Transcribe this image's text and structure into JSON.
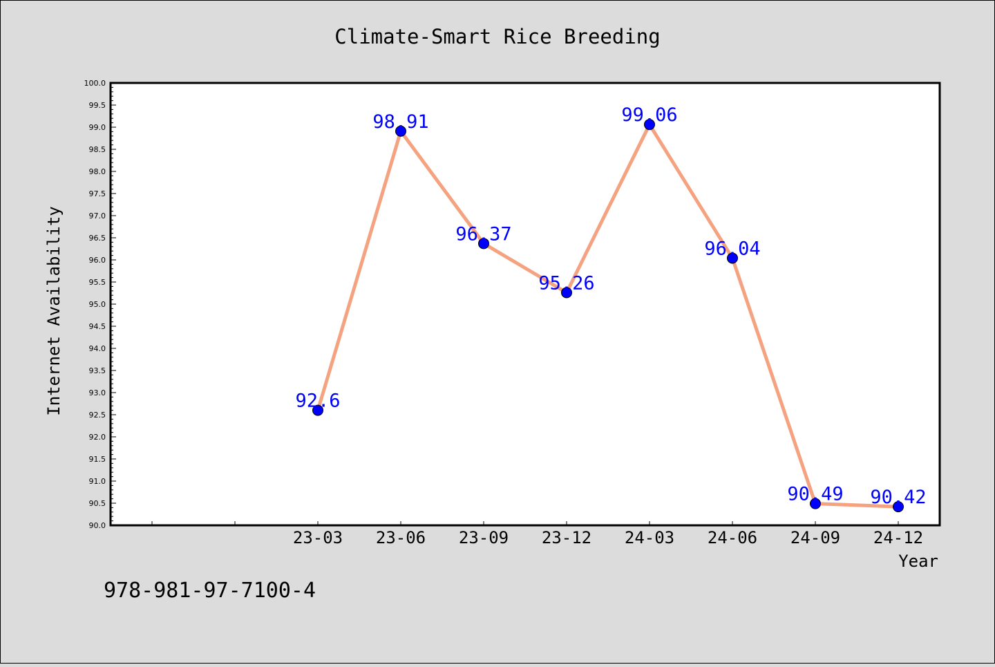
{
  "chart_data": {
    "type": "line",
    "title": "Climate-Smart Rice Breeding",
    "xlabel": "Year",
    "ylabel": "Internet Availability",
    "categories": [
      "",
      "",
      "23-03",
      "23-06",
      "23-09",
      "23-12",
      "24-03",
      "24-06",
      "24-09",
      "24-12"
    ],
    "series": [
      {
        "values": [
          null,
          null,
          92.6,
          98.91,
          96.37,
          95.26,
          99.06,
          96.04,
          90.49,
          90.42
        ],
        "labels": [
          "",
          "",
          "92.6",
          "98.91",
          "96.37",
          "95.26",
          "99.06",
          "96.04",
          "90.49",
          "90.42"
        ]
      }
    ],
    "ylim": [
      90.0,
      100.0
    ],
    "y_ticks": [
      "90.0",
      "90.5",
      "91.0",
      "91.5",
      "92.0",
      "92.5",
      "93.0",
      "93.5",
      "94.0",
      "94.5",
      "95.0",
      "95.5",
      "96.0",
      "96.5",
      "97.0",
      "97.5",
      "98.0",
      "98.5",
      "99.0",
      "99.5",
      "100.0"
    ],
    "grid": false,
    "colors": {
      "line": "#f4a27f",
      "marker": "#0000ff",
      "label": "#0000ff",
      "background": "#dcdcdc",
      "plot_background": "#ffffff"
    }
  },
  "footer": {
    "isbn": "978-981-97-7100-4"
  }
}
